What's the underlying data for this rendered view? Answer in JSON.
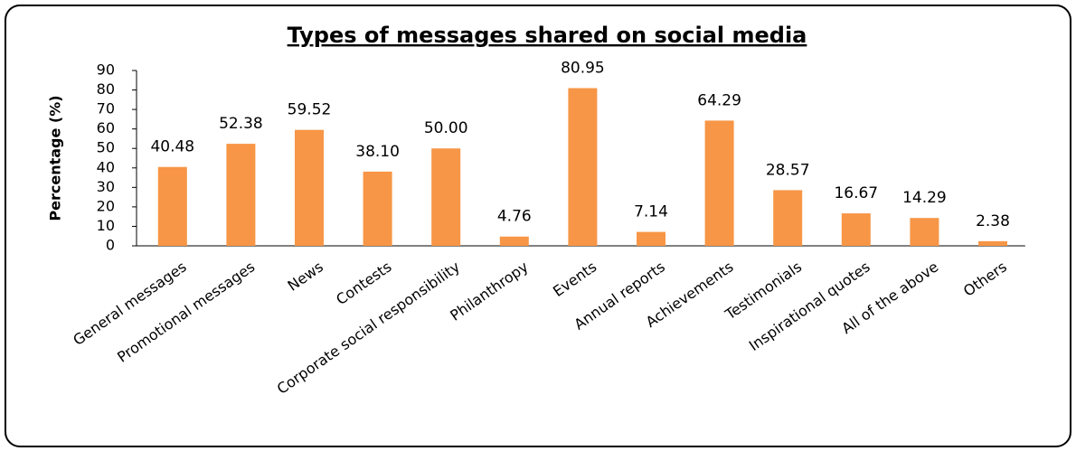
{
  "chart_data": {
    "type": "bar",
    "title": "Types of messages shared on social media",
    "y_label": "Percentage (%)",
    "categories": [
      "General messages",
      "Promotional messages",
      "News",
      "Contests",
      "Corporate social responsibility",
      "Philanthropy",
      "Events",
      "Annual reports",
      "Achievements",
      "Testimonials",
      "Inspirational quotes",
      "All of the above",
      "Others"
    ],
    "values": [
      40.48,
      52.38,
      59.52,
      38.1,
      50.0,
      4.76,
      80.95,
      7.14,
      64.29,
      28.57,
      16.67,
      14.29,
      2.38
    ],
    "value_labels": [
      "40.48",
      "52.38",
      "59.52",
      "38.10",
      "50.00",
      "4.76",
      "80.95",
      "7.14",
      "64.29",
      "28.57",
      "16.67",
      "14.29",
      "2.38"
    ],
    "color": "#f79646",
    "ylim": [
      0,
      90
    ],
    "yticks": [
      0,
      10,
      20,
      30,
      40,
      50,
      60,
      70,
      80,
      90
    ],
    "grid": false
  }
}
